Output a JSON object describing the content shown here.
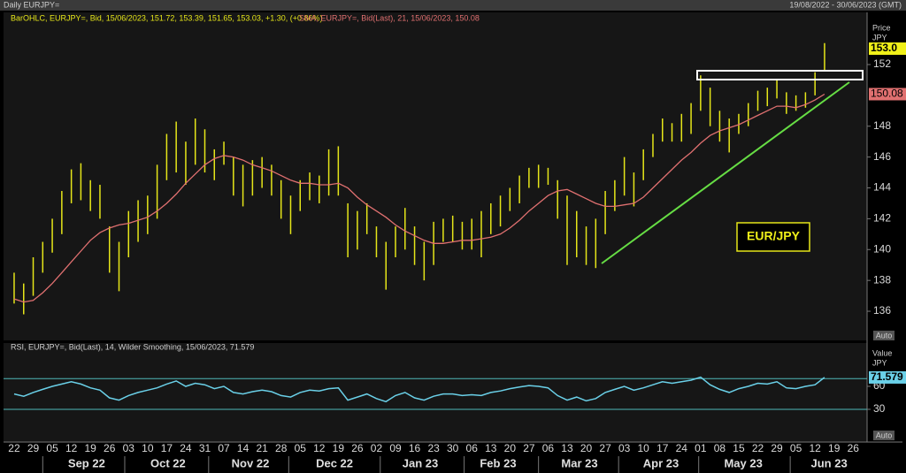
{
  "header": {
    "left": "Daily EURJPY=",
    "right": "19/08/2022 - 30/06/2023 (GMT)"
  },
  "chart_data": [
    {
      "type": "ohlc",
      "legend_bars": "BarOHLC, EURJPY=, Bid, 15/06/2023, 151.72, 153.39, 151.65, 153.03, +1.30, (+0.86%)",
      "legend_sma": "SMA, EURJPY=, Bid(Last), 21, 15/06/2023, 150.08",
      "axis_title": "Price",
      "axis_unit": "JPY",
      "auto": "Auto",
      "annotation": "EUR/JPY",
      "xlim": [
        -0.37,
        44.73
      ],
      "ylim": [
        134.11,
        154.58
      ],
      "yticks": [
        136,
        138,
        140,
        142,
        144,
        146,
        148,
        152
      ],
      "last_price": {
        "value": 153.03,
        "label": "153.0"
      },
      "last_sma": 150.08,
      "bar_color": "#e6e619",
      "sma_color": "#e07070",
      "x": [
        0,
        0.5,
        1,
        1.5,
        2,
        2.5,
        3,
        3.5,
        4,
        4.5,
        5,
        5.5,
        6,
        6.5,
        7,
        7.5,
        8,
        8.5,
        9,
        9.5,
        10,
        10.5,
        11,
        11.5,
        12,
        12.5,
        13,
        13.5,
        14,
        14.5,
        15,
        15.5,
        16,
        16.5,
        17,
        17.5,
        18,
        18.5,
        19,
        19.5,
        20,
        20.5,
        21,
        21.5,
        22,
        22.5,
        23,
        23.5,
        24,
        24.5,
        25,
        25.5,
        26,
        26.5,
        27,
        27.5,
        28,
        28.5,
        29,
        29.5,
        30,
        30.5,
        31,
        31.5,
        32,
        32.5,
        33,
        33.5,
        34,
        34.5,
        35,
        35.5,
        36,
        36.5,
        37,
        37.5,
        38,
        38.5,
        39,
        39.5,
        40,
        40.5,
        41,
        41.5,
        42,
        42.5
      ],
      "low": [
        136.5,
        135.8,
        137,
        138.5,
        139.8,
        141,
        143,
        143.2,
        142.5,
        142,
        138.5,
        137.3,
        139.5,
        140.5,
        141,
        142,
        144.5,
        145,
        144.2,
        145.5,
        145,
        144.5,
        145.5,
        143.5,
        142.8,
        143.5,
        144,
        143.5,
        142,
        141,
        142.5,
        143.2,
        143,
        143.5,
        143.5,
        139.5,
        140,
        141,
        139.5,
        137.4,
        139.5,
        140,
        139,
        138,
        139,
        140.5,
        140.5,
        140,
        140,
        139.5,
        141,
        141.5,
        142.5,
        143,
        144,
        144,
        144.2,
        142,
        139,
        139.5,
        139,
        138.8,
        141,
        142.5,
        143.5,
        142.8,
        144.5,
        146,
        147,
        147,
        147,
        147.5,
        149,
        148,
        147,
        146.3,
        147.5,
        148,
        149,
        149.3,
        149.8,
        148.8,
        149,
        149.2,
        150,
        151.65
      ],
      "high": [
        138.5,
        137.8,
        139.5,
        140.5,
        142,
        143.8,
        145.2,
        145.6,
        144.5,
        144.2,
        141.5,
        140.5,
        142.5,
        143.2,
        143.5,
        145.5,
        147.5,
        148.3,
        147,
        148.5,
        147.8,
        146.5,
        147,
        146,
        145.5,
        145.8,
        146,
        145.5,
        144.5,
        143.5,
        144.5,
        145,
        144.8,
        146.5,
        146.7,
        143,
        142.5,
        143,
        141.5,
        140.5,
        141.5,
        142.7,
        141.5,
        140.5,
        141.8,
        142,
        142.2,
        141.8,
        142,
        142.5,
        143,
        143.5,
        144,
        144.8,
        145.3,
        145.5,
        145.3,
        144.5,
        143.5,
        142.5,
        141.5,
        142,
        143.8,
        144.5,
        146,
        145,
        146.5,
        147.5,
        148.5,
        148.2,
        148.8,
        149.5,
        151.3,
        150.5,
        149,
        148.5,
        148.8,
        149.5,
        150.3,
        150.5,
        151,
        150.2,
        150,
        150.2,
        151.5,
        153.39
      ],
      "sma": [
        136.8,
        136.6,
        136.7,
        137.2,
        137.8,
        138.5,
        139.2,
        139.9,
        140.6,
        141.1,
        141.4,
        141.6,
        141.7,
        141.9,
        142.1,
        142.5,
        143.0,
        143.6,
        144.3,
        144.9,
        145.5,
        145.9,
        146.1,
        146.0,
        145.8,
        145.5,
        145.3,
        145.1,
        144.8,
        144.5,
        144.3,
        144.3,
        144.2,
        144.2,
        144.3,
        144.0,
        143.4,
        142.9,
        142.5,
        142.1,
        141.6,
        141.2,
        140.9,
        140.6,
        140.4,
        140.4,
        140.5,
        140.6,
        140.6,
        140.7,
        140.8,
        141.0,
        141.4,
        141.9,
        142.5,
        143.0,
        143.5,
        143.8,
        143.9,
        143.6,
        143.3,
        143.0,
        142.8,
        142.8,
        142.9,
        143.0,
        143.4,
        144.0,
        144.6,
        145.2,
        145.8,
        146.3,
        146.9,
        147.4,
        147.7,
        147.9,
        148.1,
        148.4,
        148.7,
        149.0,
        149.3,
        149.3,
        149.2,
        149.4,
        149.7,
        150.08
      ]
    },
    {
      "type": "line",
      "legend": "RSI, EURJPY=, Bid(Last), 14, Wilder Smoothing, 15/06/2023, 71.579",
      "axis_title": "Value",
      "axis_unit": "JPY",
      "auto": "Auto",
      "xlim": [
        -0.37,
        44.73
      ],
      "ylim": [
        -12.7,
        108.4
      ],
      "yticks": [
        60,
        30
      ],
      "levels": [
        70,
        30
      ],
      "last_value": 71.579,
      "color": "#6ad0e8",
      "level_color": "#4fb8b8",
      "x": [
        0,
        0.5,
        1,
        1.5,
        2,
        2.5,
        3,
        3.5,
        4,
        4.5,
        5,
        5.5,
        6,
        6.5,
        7,
        7.5,
        8,
        8.5,
        9,
        9.5,
        10,
        10.5,
        11,
        11.5,
        12,
        12.5,
        13,
        13.5,
        14,
        14.5,
        15,
        15.5,
        16,
        16.5,
        17,
        17.5,
        18,
        18.5,
        19,
        19.5,
        20,
        20.5,
        21,
        21.5,
        22,
        22.5,
        23,
        23.5,
        24,
        24.5,
        25,
        25.5,
        26,
        26.5,
        27,
        27.5,
        28,
        28.5,
        29,
        29.5,
        30,
        30.5,
        31,
        31.5,
        32,
        32.5,
        33,
        33.5,
        34,
        34.5,
        35,
        35.5,
        36,
        36.5,
        37,
        37.5,
        38,
        38.5,
        39,
        39.5,
        40,
        40.5,
        41,
        41.5,
        42,
        42.5
      ],
      "values": [
        50,
        47,
        52,
        56,
        60,
        63,
        66,
        63,
        58,
        55,
        45,
        42,
        48,
        52,
        55,
        58,
        63,
        67,
        60,
        64,
        62,
        57,
        60,
        52,
        50,
        53,
        55,
        53,
        48,
        46,
        52,
        55,
        54,
        57,
        58,
        42,
        46,
        50,
        44,
        40,
        48,
        52,
        45,
        42,
        47,
        50,
        50,
        48,
        49,
        48,
        52,
        54,
        57,
        59,
        61,
        60,
        58,
        48,
        42,
        46,
        41,
        44,
        52,
        56,
        60,
        55,
        58,
        62,
        66,
        64,
        66,
        68,
        72,
        62,
        56,
        52,
        57,
        60,
        64,
        63,
        66,
        58,
        57,
        60,
        62,
        71.579
      ]
    }
  ],
  "x_axis": {
    "days": [
      "22",
      "29",
      "05",
      "12",
      "19",
      "26",
      "03",
      "10",
      "17",
      "24",
      "31",
      "07",
      "14",
      "21",
      "28",
      "05",
      "12",
      "19",
      "26",
      "02",
      "09",
      "16",
      "23",
      "30",
      "06",
      "13",
      "20",
      "27",
      "06",
      "13",
      "20",
      "27",
      "03",
      "10",
      "17",
      "24",
      "01",
      "08",
      "15",
      "22",
      "29",
      "05",
      "12",
      "19",
      "26"
    ],
    "months": [
      "Sep 22",
      "Oct 22",
      "Nov 22",
      "Dec 22",
      "Jan 23",
      "Feb 23",
      "Mar 23",
      "Apr 23",
      "May 23",
      "Jun 23"
    ],
    "month_x": [
      3.8,
      8.07,
      12.39,
      16.8,
      21.3,
      25.38,
      29.65,
      33.92,
      38.24,
      42.74
    ],
    "month_start": [
      1.5,
      5.8,
      10.2,
      14.4,
      19.2,
      23.6,
      27.5,
      31.7,
      35.9,
      40.7
    ]
  }
}
